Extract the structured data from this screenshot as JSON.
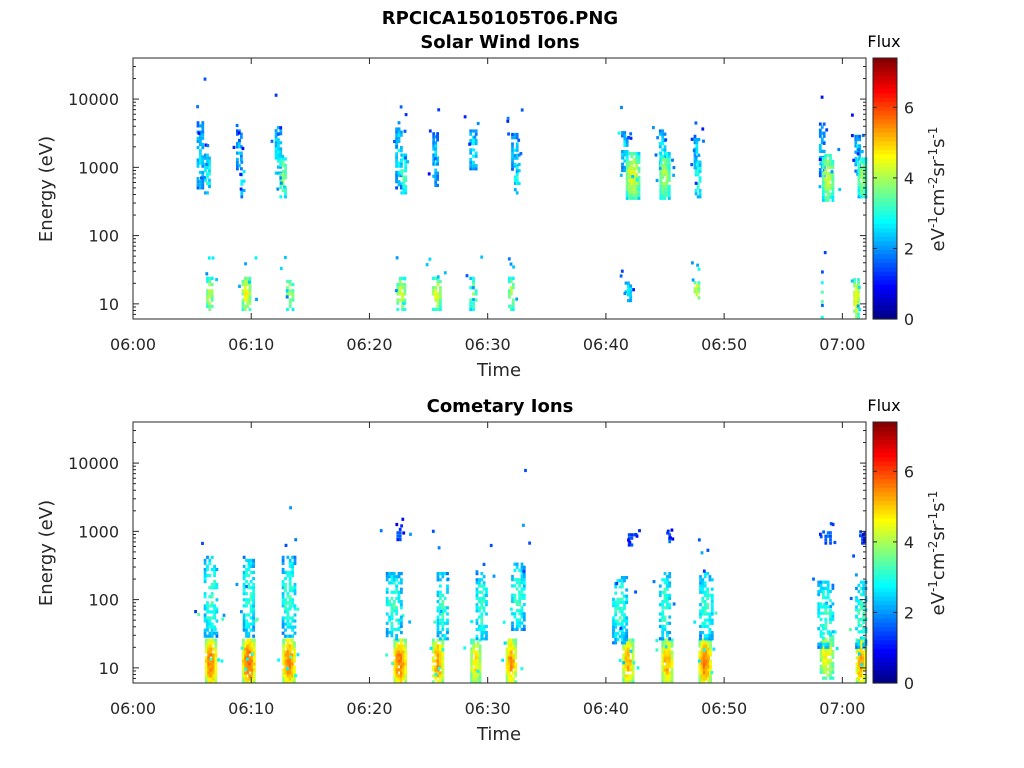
{
  "figure_title": "RPCICA150105T06.PNG",
  "chart_data": [
    {
      "type": "heatmap",
      "title": "Solar Wind Ions",
      "xlabel": "Time",
      "ylabel": "Energy (eV)",
      "y_scale": "log",
      "x_ticks": [
        "06:00",
        "06:10",
        "06:20",
        "06:30",
        "06:40",
        "06:50",
        "07:00"
      ],
      "y_ticks": [
        "10",
        "100",
        "1000",
        "10000"
      ],
      "xlim": [
        "06:00",
        "07:02"
      ],
      "ylim": [
        6,
        40000
      ],
      "colorbar": {
        "label": "Flux",
        "units": "eV-1cm-2sr-1s-1",
        "ticks": [
          "0",
          "2",
          "4",
          "6"
        ],
        "range": [
          0,
          7.4
        ],
        "colormap": "jet"
      },
      "clusters": [
        {
          "t_min": 5.7,
          "energy_eV": 1500,
          "flux": 2.6,
          "t_width": 0.6,
          "e_decades": 0.5,
          "density": 0.7
        },
        {
          "t_min": 6.3,
          "energy_eV": 800,
          "flux": 3.0,
          "t_width": 0.5,
          "e_decades": 0.3,
          "density": 0.6
        },
        {
          "t_min": 9.0,
          "energy_eV": 1800,
          "flux": 2.4,
          "t_width": 0.5,
          "e_decades": 0.3,
          "density": 0.7
        },
        {
          "t_min": 9.3,
          "energy_eV": 700,
          "flux": 2.8,
          "t_width": 0.4,
          "e_decades": 0.3,
          "density": 0.5
        },
        {
          "t_min": 12.3,
          "energy_eV": 1600,
          "flux": 2.8,
          "t_width": 0.6,
          "e_decades": 0.4,
          "density": 0.7
        },
        {
          "t_min": 12.7,
          "energy_eV": 700,
          "flux": 3.8,
          "t_width": 0.6,
          "e_decades": 0.3,
          "density": 0.7
        },
        {
          "t_min": 22.5,
          "energy_eV": 1500,
          "flux": 2.6,
          "t_width": 0.6,
          "e_decades": 0.5,
          "density": 0.6
        },
        {
          "t_min": 22.9,
          "energy_eV": 800,
          "flux": 3.4,
          "t_width": 0.5,
          "e_decades": 0.3,
          "density": 0.6
        },
        {
          "t_min": 25.6,
          "energy_eV": 1300,
          "flux": 2.5,
          "t_width": 0.5,
          "e_decades": 0.4,
          "density": 0.6
        },
        {
          "t_min": 28.8,
          "energy_eV": 1800,
          "flux": 2.8,
          "t_width": 0.7,
          "e_decades": 0.3,
          "density": 0.7
        },
        {
          "t_min": 32.3,
          "energy_eV": 1600,
          "flux": 2.6,
          "t_width": 0.6,
          "e_decades": 0.3,
          "density": 0.6
        },
        {
          "t_min": 32.5,
          "energy_eV": 800,
          "flux": 3.0,
          "t_width": 0.5,
          "e_decades": 0.3,
          "density": 0.5
        },
        {
          "t_min": 41.6,
          "energy_eV": 1700,
          "flux": 2.6,
          "t_width": 0.6,
          "e_decades": 0.3,
          "density": 0.6
        },
        {
          "t_min": 42.3,
          "energy_eV": 750,
          "flux": 4.4,
          "t_width": 1.2,
          "e_decades": 0.35,
          "density": 0.9
        },
        {
          "t_min": 44.8,
          "energy_eV": 1800,
          "flux": 2.8,
          "t_width": 0.6,
          "e_decades": 0.3,
          "density": 0.7
        },
        {
          "t_min": 45.0,
          "energy_eV": 750,
          "flux": 4.0,
          "t_width": 0.9,
          "e_decades": 0.35,
          "density": 0.8
        },
        {
          "t_min": 47.7,
          "energy_eV": 1500,
          "flux": 2.6,
          "t_width": 0.5,
          "e_decades": 0.3,
          "density": 0.6
        },
        {
          "t_min": 47.8,
          "energy_eV": 700,
          "flux": 3.2,
          "t_width": 0.5,
          "e_decades": 0.3,
          "density": 0.6
        },
        {
          "t_min": 58.3,
          "energy_eV": 1800,
          "flux": 2.4,
          "t_width": 0.5,
          "e_decades": 0.4,
          "density": 0.6
        },
        {
          "t_min": 58.8,
          "energy_eV": 700,
          "flux": 4.2,
          "t_width": 1.0,
          "e_decades": 0.35,
          "density": 0.85
        },
        {
          "t_min": 61.3,
          "energy_eV": 1500,
          "flux": 2.6,
          "t_width": 0.5,
          "e_decades": 0.3,
          "density": 0.7
        },
        {
          "t_min": 61.7,
          "energy_eV": 700,
          "flux": 3.8,
          "t_width": 0.8,
          "e_decades": 0.3,
          "density": 0.8
        },
        {
          "t_min": 6.5,
          "energy_eV": 14,
          "flux": 4.2,
          "t_width": 0.6,
          "e_decades": 0.25,
          "density": 0.7
        },
        {
          "t_min": 9.6,
          "energy_eV": 14,
          "flux": 4.6,
          "t_width": 0.8,
          "e_decades": 0.25,
          "density": 0.8
        },
        {
          "t_min": 13.3,
          "energy_eV": 14,
          "flux": 4.0,
          "t_width": 0.7,
          "e_decades": 0.25,
          "density": 0.7
        },
        {
          "t_min": 22.7,
          "energy_eV": 14,
          "flux": 4.2,
          "t_width": 0.8,
          "e_decades": 0.25,
          "density": 0.7
        },
        {
          "t_min": 25.7,
          "energy_eV": 14,
          "flux": 4.3,
          "t_width": 0.8,
          "e_decades": 0.25,
          "density": 0.7
        },
        {
          "t_min": 28.8,
          "energy_eV": 14,
          "flux": 3.6,
          "t_width": 0.7,
          "e_decades": 0.25,
          "density": 0.6
        },
        {
          "t_min": 32.0,
          "energy_eV": 14,
          "flux": 4.0,
          "t_width": 0.5,
          "e_decades": 0.25,
          "density": 0.6
        },
        {
          "t_min": 41.9,
          "energy_eV": 15,
          "flux": 2.8,
          "t_width": 0.6,
          "e_decades": 0.15,
          "density": 0.7
        },
        {
          "t_min": 47.7,
          "energy_eV": 15,
          "flux": 4.4,
          "t_width": 0.5,
          "e_decades": 0.2,
          "density": 0.7
        },
        {
          "t_min": 58.3,
          "energy_eV": 12,
          "flux": 3.2,
          "t_width": 0.3,
          "e_decades": 0.3,
          "density": 0.5
        },
        {
          "t_min": 61.2,
          "energy_eV": 12,
          "flux": 4.6,
          "t_width": 0.5,
          "e_decades": 0.3,
          "density": 0.7
        }
      ]
    },
    {
      "type": "heatmap",
      "title": "Cometary Ions",
      "xlabel": "Time",
      "ylabel": "Energy (eV)",
      "y_scale": "log",
      "x_ticks": [
        "06:00",
        "06:10",
        "06:20",
        "06:30",
        "06:40",
        "06:50",
        "07:00"
      ],
      "y_ticks": [
        "10",
        "100",
        "1000",
        "10000"
      ],
      "xlim": [
        "06:00",
        "07:02"
      ],
      "ylim": [
        6,
        40000
      ],
      "colorbar": {
        "label": "Flux",
        "units": "eV-1cm-2sr-1s-1",
        "ticks": [
          "0",
          "2",
          "4",
          "6"
        ],
        "range": [
          0,
          7.4
        ],
        "colormap": "jet"
      },
      "clusters": [
        {
          "t_min": 6.6,
          "energy_eV": 12,
          "flux": 5.6,
          "t_width": 1.0,
          "e_decades": 0.35,
          "density": 0.95
        },
        {
          "t_min": 9.8,
          "energy_eV": 12,
          "flux": 5.8,
          "t_width": 1.1,
          "e_decades": 0.35,
          "density": 0.95
        },
        {
          "t_min": 13.2,
          "energy_eV": 12,
          "flux": 5.6,
          "t_width": 1.1,
          "e_decades": 0.35,
          "density": 0.95
        },
        {
          "t_min": 22.6,
          "energy_eV": 12,
          "flux": 5.6,
          "t_width": 1.1,
          "e_decades": 0.35,
          "density": 0.95
        },
        {
          "t_min": 25.8,
          "energy_eV": 12,
          "flux": 5.4,
          "t_width": 1.0,
          "e_decades": 0.35,
          "density": 0.9
        },
        {
          "t_min": 29.0,
          "energy_eV": 12,
          "flux": 4.8,
          "t_width": 0.9,
          "e_decades": 0.35,
          "density": 0.85
        },
        {
          "t_min": 32.0,
          "energy_eV": 12,
          "flux": 5.4,
          "t_width": 0.9,
          "e_decades": 0.35,
          "density": 0.9
        },
        {
          "t_min": 41.9,
          "energy_eV": 12,
          "flux": 5.2,
          "t_width": 1.0,
          "e_decades": 0.35,
          "density": 0.9
        },
        {
          "t_min": 45.2,
          "energy_eV": 12,
          "flux": 5.2,
          "t_width": 1.0,
          "e_decades": 0.35,
          "density": 0.9
        },
        {
          "t_min": 48.4,
          "energy_eV": 12,
          "flux": 5.6,
          "t_width": 1.1,
          "e_decades": 0.35,
          "density": 0.95
        },
        {
          "t_min": 58.7,
          "energy_eV": 15,
          "flux": 4.6,
          "t_width": 1.2,
          "e_decades": 0.35,
          "density": 0.85
        },
        {
          "t_min": 61.6,
          "energy_eV": 12,
          "flux": 5.4,
          "t_width": 0.9,
          "e_decades": 0.35,
          "density": 0.9
        },
        {
          "t_min": 6.6,
          "energy_eV": 110,
          "flux": 3.2,
          "t_width": 1.2,
          "e_decades": 0.6,
          "density": 0.55
        },
        {
          "t_min": 9.8,
          "energy_eV": 110,
          "flux": 3.2,
          "t_width": 1.0,
          "e_decades": 0.6,
          "density": 0.55
        },
        {
          "t_min": 13.2,
          "energy_eV": 110,
          "flux": 3.2,
          "t_width": 1.2,
          "e_decades": 0.6,
          "density": 0.55
        },
        {
          "t_min": 22.1,
          "energy_eV": 80,
          "flux": 3.2,
          "t_width": 1.4,
          "e_decades": 0.5,
          "density": 0.55
        },
        {
          "t_min": 26.2,
          "energy_eV": 80,
          "flux": 3.2,
          "t_width": 1.0,
          "e_decades": 0.5,
          "density": 0.55
        },
        {
          "t_min": 29.5,
          "energy_eV": 80,
          "flux": 3.2,
          "t_width": 1.0,
          "e_decades": 0.5,
          "density": 0.55
        },
        {
          "t_min": 32.6,
          "energy_eV": 110,
          "flux": 3.2,
          "t_width": 1.2,
          "e_decades": 0.5,
          "density": 0.55
        },
        {
          "t_min": 41.2,
          "energy_eV": 70,
          "flux": 3.2,
          "t_width": 1.3,
          "e_decades": 0.5,
          "density": 0.55
        },
        {
          "t_min": 45.0,
          "energy_eV": 80,
          "flux": 3.2,
          "t_width": 1.0,
          "e_decades": 0.5,
          "density": 0.55
        },
        {
          "t_min": 48.5,
          "energy_eV": 80,
          "flux": 3.2,
          "t_width": 1.2,
          "e_decades": 0.5,
          "density": 0.55
        },
        {
          "t_min": 58.6,
          "energy_eV": 60,
          "flux": 3.2,
          "t_width": 1.4,
          "e_decades": 0.5,
          "density": 0.55
        },
        {
          "t_min": 61.6,
          "energy_eV": 60,
          "flux": 3.2,
          "t_width": 1.0,
          "e_decades": 0.5,
          "density": 0.55
        },
        {
          "t_min": 22.5,
          "energy_eV": 900,
          "flux": 1.6,
          "t_width": 0.4,
          "e_decades": 0.1,
          "density": 0.7
        },
        {
          "t_min": 42.2,
          "energy_eV": 750,
          "flux": 1.6,
          "t_width": 0.7,
          "e_decades": 0.1,
          "density": 0.8
        },
        {
          "t_min": 45.4,
          "energy_eV": 750,
          "flux": 1.6,
          "t_width": 0.3,
          "e_decades": 0.1,
          "density": 0.8
        },
        {
          "t_min": 58.8,
          "energy_eV": 800,
          "flux": 2.0,
          "t_width": 0.6,
          "e_decades": 0.1,
          "density": 0.8
        },
        {
          "t_min": 61.8,
          "energy_eV": 800,
          "flux": 1.8,
          "t_width": 0.4,
          "e_decades": 0.1,
          "density": 0.8
        }
      ],
      "points": [
        {
          "t_min": 33.2,
          "energy_eV": 7800,
          "flux": 1.5
        },
        {
          "t_min": 30.3,
          "energy_eV": 620,
          "flux": 1.5
        },
        {
          "t_min": 25.4,
          "energy_eV": 1000,
          "flux": 1.5
        },
        {
          "t_min": 47.9,
          "energy_eV": 750,
          "flux": 1.5
        }
      ]
    }
  ]
}
